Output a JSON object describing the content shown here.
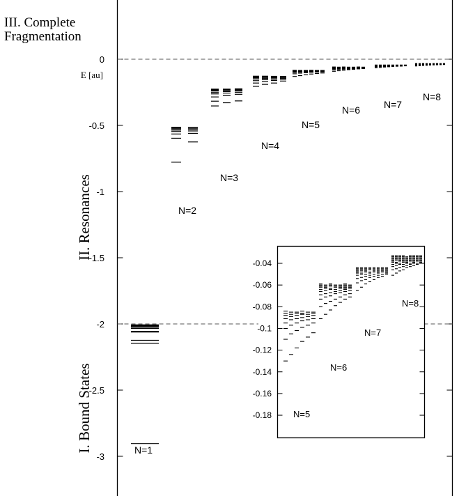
{
  "chart_data": [
    {
      "type": "scatter",
      "title": "",
      "y_unit_label": "E [au]",
      "ylim": [
        -3.3,
        0.3
      ],
      "y_ticks": [
        {
          "value": 0,
          "label": "0"
        },
        {
          "value": -0.5,
          "label": "-0.5"
        },
        {
          "value": -1,
          "label": "-1"
        },
        {
          "value": -1.5,
          "label": "-1.5"
        },
        {
          "value": -2,
          "label": "-2"
        },
        {
          "value": -2.5,
          "label": "-2.5"
        },
        {
          "value": -3,
          "label": "-3"
        }
      ],
      "threshold_lines": [
        {
          "energy": 0
        },
        {
          "energy": -2
        }
      ],
      "region_labels": [
        {
          "text": "III. Complete Fragmentation",
          "line1": "III. Complete",
          "line2": "Fragmentation"
        },
        {
          "text": "II. Resonances"
        },
        {
          "text": "I. Bound States"
        }
      ],
      "series": [
        {
          "name": "N=1",
          "columns": [
            {
              "levels": [
                -2.9037,
                -2.1459,
                -2.1238,
                -2.0613,
                -2.0556,
                -2.0334,
                -2.0311,
                -2.02,
                -2.018,
                -2.0125,
                -2.011,
                -2.008,
                -2.007
              ]
            }
          ]
        },
        {
          "name": "N=2",
          "columns": [
            {
              "levels": [
                -0.778,
                -0.597,
                -0.565,
                -0.546,
                -0.536,
                -0.527,
                -0.52,
                -0.514
              ]
            },
            {
              "levels": [
                -0.625,
                -0.56,
                -0.542,
                -0.53,
                -0.522,
                -0.515
              ]
            }
          ]
        },
        {
          "name": "N=3",
          "columns": [
            {
              "levels": [
                -0.353,
                -0.317,
                -0.285,
                -0.262,
                -0.25,
                -0.24,
                -0.234,
                -0.23,
                -0.226
              ]
            },
            {
              "levels": [
                -0.329,
                -0.275,
                -0.256,
                -0.244,
                -0.236,
                -0.23,
                -0.226
              ]
            },
            {
              "levels": [
                -0.315,
                -0.265,
                -0.25,
                -0.24,
                -0.233,
                -0.228,
                -0.224
              ]
            }
          ]
        },
        {
          "name": "N=4",
          "columns": [
            {
              "levels": [
                -0.205,
                -0.18,
                -0.162,
                -0.15,
                -0.142,
                -0.137,
                -0.133,
                -0.13,
                -0.128
              ]
            },
            {
              "levels": [
                -0.19,
                -0.17,
                -0.155,
                -0.145,
                -0.138,
                -0.134,
                -0.13,
                -0.128
              ]
            },
            {
              "levels": [
                -0.18,
                -0.16,
                -0.15,
                -0.142,
                -0.136,
                -0.132,
                -0.129
              ]
            },
            {
              "levels": [
                -0.165,
                -0.152,
                -0.144,
                -0.138,
                -0.133,
                -0.13
              ]
            }
          ]
        },
        {
          "name": "N=5",
          "columns": [
            {
              "levels": [
                -0.13,
                -0.11,
                -0.1,
                -0.095,
                -0.091,
                -0.088,
                -0.086,
                -0.084
              ]
            },
            {
              "levels": [
                -0.124,
                -0.105,
                -0.097,
                -0.092,
                -0.089,
                -0.087,
                -0.085
              ]
            },
            {
              "levels": [
                -0.118,
                -0.102,
                -0.095,
                -0.091,
                -0.088,
                -0.086,
                -0.085
              ]
            },
            {
              "levels": [
                -0.112,
                -0.099,
                -0.093,
                -0.09,
                -0.087,
                -0.086,
                -0.084
              ]
            },
            {
              "levels": [
                -0.108,
                -0.097,
                -0.092,
                -0.089,
                -0.087,
                -0.085
              ]
            },
            {
              "levels": [
                -0.104,
                -0.095,
                -0.091,
                -0.088,
                -0.086,
                -0.085
              ]
            }
          ]
        },
        {
          "name": "N=6",
          "columns": [
            {
              "levels": [
                -0.091,
                -0.08,
                -0.073,
                -0.069,
                -0.066,
                -0.064,
                -0.062,
                -0.061,
                -0.06,
                -0.059
              ]
            },
            {
              "levels": [
                -0.087,
                -0.077,
                -0.071,
                -0.068,
                -0.065,
                -0.063,
                -0.062,
                -0.061,
                -0.06
              ]
            },
            {
              "levels": [
                -0.083,
                -0.075,
                -0.07,
                -0.067,
                -0.064,
                -0.063,
                -0.061,
                -0.06,
                -0.059
              ]
            },
            {
              "levels": [
                -0.079,
                -0.073,
                -0.068,
                -0.066,
                -0.064,
                -0.062,
                -0.061,
                -0.06
              ]
            },
            {
              "levels": [
                -0.076,
                -0.071,
                -0.067,
                -0.065,
                -0.063,
                -0.062,
                -0.061,
                -0.06
              ]
            },
            {
              "levels": [
                -0.073,
                -0.069,
                -0.066,
                -0.064,
                -0.063,
                -0.062,
                -0.061,
                -0.06,
                -0.059
              ]
            },
            {
              "levels": [
                -0.071,
                -0.068,
                -0.065,
                -0.063,
                -0.062,
                -0.061,
                -0.06
              ]
            }
          ]
        },
        {
          "name": "N=7",
          "columns": [
            {
              "levels": [
                -0.065,
                -0.058,
                -0.054,
                -0.051,
                -0.049,
                -0.048,
                -0.047,
                -0.046,
                -0.045,
                -0.044
              ]
            },
            {
              "levels": [
                -0.062,
                -0.056,
                -0.053,
                -0.05,
                -0.049,
                -0.047,
                -0.046,
                -0.045,
                -0.044
              ]
            },
            {
              "levels": [
                -0.059,
                -0.055,
                -0.052,
                -0.05,
                -0.048,
                -0.047,
                -0.046,
                -0.045,
                -0.044
              ]
            },
            {
              "levels": [
                -0.057,
                -0.053,
                -0.051,
                -0.049,
                -0.048,
                -0.046,
                -0.045,
                -0.044
              ]
            },
            {
              "levels": [
                -0.055,
                -0.052,
                -0.05,
                -0.048,
                -0.047,
                -0.046,
                -0.045,
                -0.044
              ]
            },
            {
              "levels": [
                -0.053,
                -0.051,
                -0.049,
                -0.048,
                -0.047,
                -0.046,
                -0.045,
                -0.044
              ]
            },
            {
              "levels": [
                -0.052,
                -0.05,
                -0.048,
                -0.047,
                -0.046,
                -0.045,
                -0.044
              ]
            },
            {
              "levels": [
                -0.05,
                -0.049,
                -0.048,
                -0.047,
                -0.046,
                -0.045,
                -0.044
              ]
            }
          ]
        },
        {
          "name": "N=8",
          "columns": [
            {
              "levels": [
                -0.051,
                -0.046,
                -0.043,
                -0.041,
                -0.039,
                -0.038,
                -0.037,
                -0.036,
                -0.035,
                -0.034,
                -0.033
              ]
            },
            {
              "levels": [
                -0.049,
                -0.045,
                -0.042,
                -0.04,
                -0.039,
                -0.037,
                -0.036,
                -0.035,
                -0.034,
                -0.033
              ]
            },
            {
              "levels": [
                -0.047,
                -0.044,
                -0.041,
                -0.04,
                -0.038,
                -0.037,
                -0.036,
                -0.035,
                -0.034,
                -0.033
              ]
            },
            {
              "levels": [
                -0.046,
                -0.043,
                -0.041,
                -0.039,
                -0.038,
                -0.037,
                -0.036,
                -0.035,
                -0.034,
                -0.033
              ]
            },
            {
              "levels": [
                -0.044,
                -0.042,
                -0.04,
                -0.039,
                -0.038,
                -0.037,
                -0.036,
                -0.035,
                -0.034
              ]
            },
            {
              "levels": [
                -0.043,
                -0.041,
                -0.04,
                -0.038,
                -0.037,
                -0.036,
                -0.035,
                -0.034,
                -0.033
              ]
            },
            {
              "levels": [
                -0.042,
                -0.04,
                -0.039,
                -0.038,
                -0.037,
                -0.036,
                -0.035,
                -0.034,
                -0.033
              ]
            },
            {
              "levels": [
                -0.041,
                -0.04,
                -0.038,
                -0.037,
                -0.036,
                -0.035,
                -0.034,
                -0.033
              ]
            },
            {
              "levels": [
                -0.04,
                -0.039,
                -0.038,
                -0.037,
                -0.036,
                -0.035,
                -0.034,
                -0.033
              ]
            }
          ]
        }
      ]
    },
    {
      "type": "scatter",
      "title": "",
      "ylim": [
        -0.19,
        -0.033
      ],
      "y_ticks": [
        {
          "value": -0.04,
          "label": "-0.04"
        },
        {
          "value": -0.06,
          "label": "-0.06"
        },
        {
          "value": -0.08,
          "label": "-0.08"
        },
        {
          "value": -0.1,
          "label": "-0.1"
        },
        {
          "value": -0.12,
          "label": "-0.12"
        },
        {
          "value": -0.14,
          "label": "-0.14"
        },
        {
          "value": -0.16,
          "label": "-0.16"
        },
        {
          "value": -0.18,
          "label": "-0.18"
        }
      ],
      "series_source": "same as main chart, N=5 through N=8",
      "series_labels": [
        "N=5",
        "N=6",
        "N=7",
        "N=8"
      ]
    }
  ]
}
